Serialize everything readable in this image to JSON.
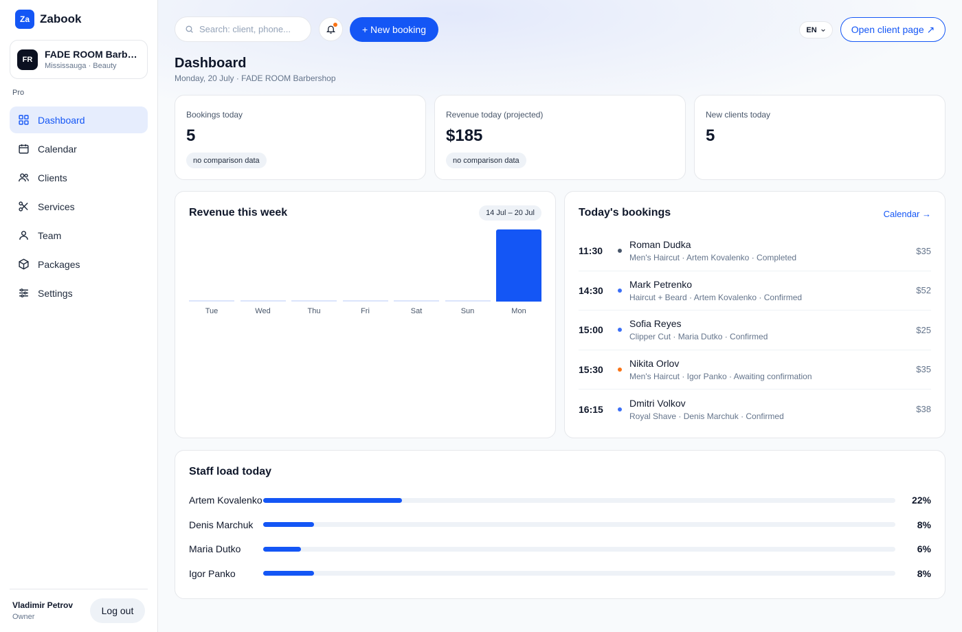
{
  "brand": {
    "logo": "Za",
    "name": "Zabook"
  },
  "business": {
    "initials": "FR",
    "name": "FADE ROOM Barbershop",
    "subtitle": "Mississauga · Beauty"
  },
  "plan_label": "Pro",
  "nav": [
    {
      "label": "Dashboard",
      "icon": "grid-icon",
      "active": true
    },
    {
      "label": "Calendar",
      "icon": "calendar-icon",
      "active": false
    },
    {
      "label": "Clients",
      "icon": "users-icon",
      "active": false
    },
    {
      "label": "Services",
      "icon": "scissors-icon",
      "active": false
    },
    {
      "label": "Team",
      "icon": "user-icon",
      "active": false
    },
    {
      "label": "Packages",
      "icon": "box-icon",
      "active": false
    },
    {
      "label": "Settings",
      "icon": "sliders-icon",
      "active": false
    }
  ],
  "user": {
    "name": "Vladimir Petrov",
    "role": "Owner",
    "logout_label": "Log out"
  },
  "topbar": {
    "search_placeholder": "Search: client, phone...",
    "new_booking_label": "+ New booking",
    "language": "EN",
    "open_client_label": "Open client page ↗"
  },
  "page": {
    "title": "Dashboard",
    "subtitle": "Monday, 20 July · FADE ROOM Barbershop"
  },
  "stats": [
    {
      "label": "Bookings today",
      "value": "5",
      "note": "no comparison data"
    },
    {
      "label": "Revenue today (projected)",
      "value": "$185",
      "note": "no comparison data"
    },
    {
      "label": "New clients today",
      "value": "5",
      "note": ""
    }
  ],
  "revenue_week": {
    "title": "Revenue this week",
    "range": "14 Jul – 20 Jul"
  },
  "chart_data": {
    "type": "bar",
    "categories": [
      "Tue",
      "Wed",
      "Thu",
      "Fri",
      "Sat",
      "Sun",
      "Mon"
    ],
    "values": [
      0,
      0,
      0,
      0,
      0,
      0,
      185
    ],
    "title": "Revenue this week"
  },
  "bookings": {
    "title": "Today's bookings",
    "calendar_link": "Calendar →",
    "items": [
      {
        "time": "11:30",
        "name": "Roman Dudka",
        "detail": "Men's Haircut · Artem Kovalenko · Completed",
        "price": "$35",
        "status_color": "#475569"
      },
      {
        "time": "14:30",
        "name": "Mark Petrenko",
        "detail": "Haircut + Beard · Artem Kovalenko · Confirmed",
        "price": "$52",
        "status_color": "#3b6ff6"
      },
      {
        "time": "15:00",
        "name": "Sofia Reyes",
        "detail": "Clipper Cut · Maria Dutko · Confirmed",
        "price": "$25",
        "status_color": "#3b6ff6"
      },
      {
        "time": "15:30",
        "name": "Nikita Orlov",
        "detail": "Men's Haircut · Igor Panko · Awaiting confirmation",
        "price": "$35",
        "status_color": "#f97316"
      },
      {
        "time": "16:15",
        "name": "Dmitri Volkov",
        "detail": "Royal Shave · Denis Marchuk · Confirmed",
        "price": "$38",
        "status_color": "#3b6ff6"
      }
    ]
  },
  "staff_load": {
    "title": "Staff load today",
    "items": [
      {
        "name": "Artem Kovalenko",
        "load": 0.22,
        "pct": "22%"
      },
      {
        "name": "Denis Marchuk",
        "load": 0.08,
        "pct": "8%"
      },
      {
        "name": "Maria Dutko",
        "load": 0.06,
        "pct": "6%"
      },
      {
        "name": "Igor Panko",
        "load": 0.08,
        "pct": "8%"
      }
    ]
  }
}
